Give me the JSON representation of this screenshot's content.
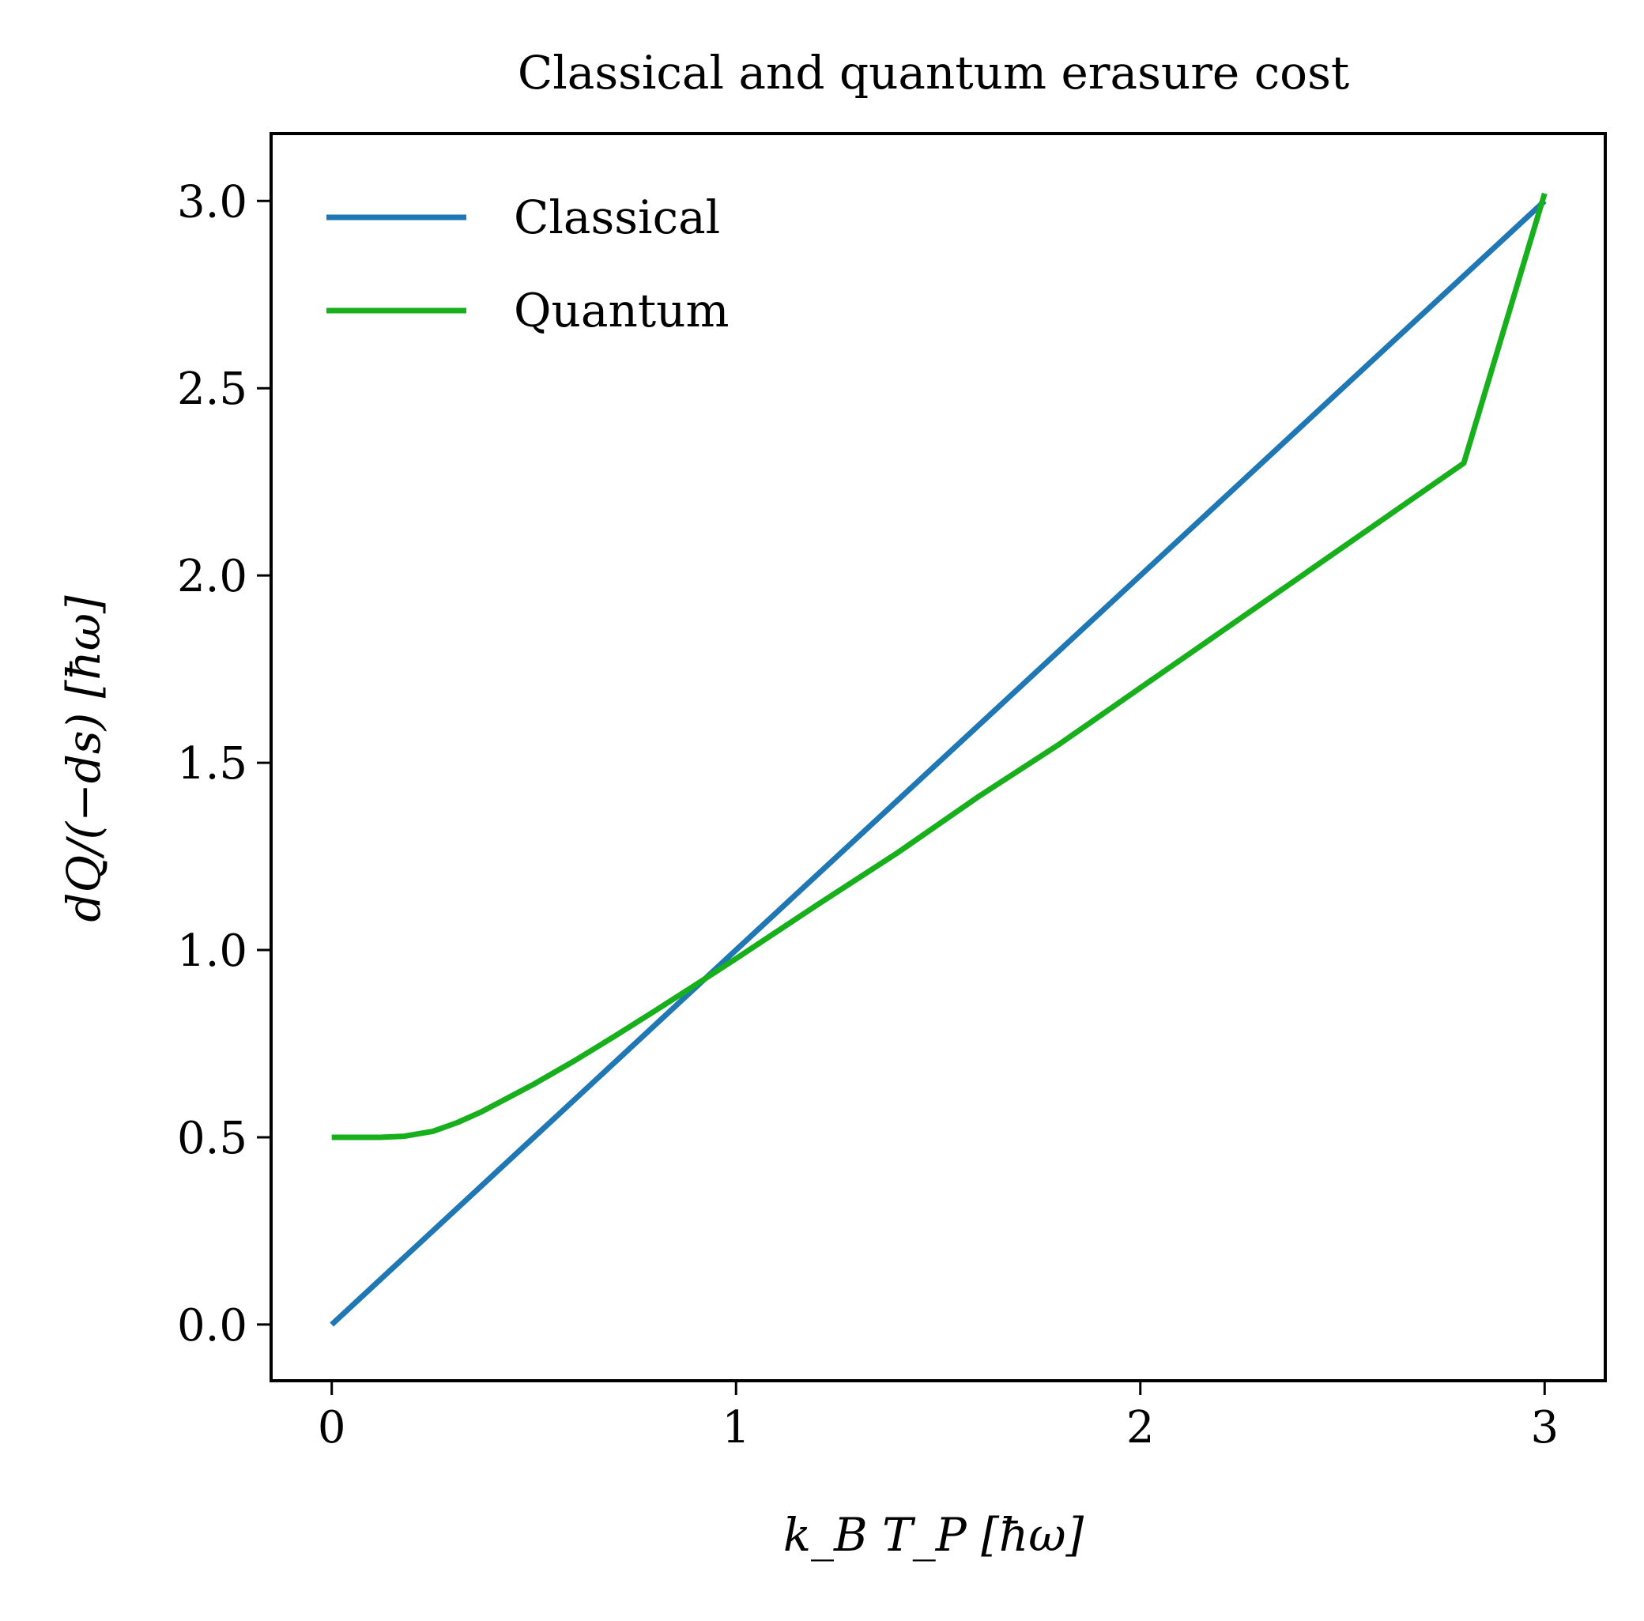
{
  "chart_data": {
    "type": "line",
    "title": "Classical and quantum erasure cost",
    "xlabel": "k_B T_P  [ħω]",
    "ylabel": "dQ/(−ds)  [ħω]",
    "xlim": [
      -0.15,
      3.15
    ],
    "ylim": [
      -0.15,
      3.18
    ],
    "xticks": [
      0,
      1,
      2,
      3
    ],
    "xtick_labels": [
      "0",
      "1",
      "2",
      "3"
    ],
    "yticks": [
      0.0,
      0.5,
      1.0,
      1.5,
      2.0,
      2.5,
      3.0
    ],
    "ytick_labels": [
      "0.0",
      "0.5",
      "1.0",
      "1.5",
      "2.0",
      "2.5",
      "3.0"
    ],
    "grid": false,
    "legend_position": "top-left",
    "series": [
      {
        "name": "Classical",
        "color": "#1f77b4",
        "x": [
          0.0,
          0.5,
          1.0,
          1.5,
          2.0,
          2.5,
          3.0
        ],
        "y": [
          0.0,
          0.5,
          1.0,
          1.5,
          2.0,
          2.5,
          3.0
        ]
      },
      {
        "name": "Quantum",
        "color": "#17b01c",
        "x": [
          0.0,
          0.06,
          0.12,
          0.18,
          0.25,
          0.31,
          0.37,
          0.43,
          0.5,
          0.6,
          0.7,
          0.8,
          0.9,
          1.0,
          1.2,
          1.4,
          1.6,
          1.8,
          2.0,
          2.2,
          2.4,
          2.6,
          2.8,
          3.0
        ],
        "y": [
          0.5,
          0.5,
          0.5,
          0.503,
          0.516,
          0.539,
          0.568,
          0.602,
          0.642,
          0.704,
          0.77,
          0.838,
          0.907,
          0.977,
          1.12,
          1.26,
          1.41,
          1.55,
          1.7,
          1.85,
          2.0,
          2.15,
          2.3,
          3.02
        ]
      }
    ]
  }
}
